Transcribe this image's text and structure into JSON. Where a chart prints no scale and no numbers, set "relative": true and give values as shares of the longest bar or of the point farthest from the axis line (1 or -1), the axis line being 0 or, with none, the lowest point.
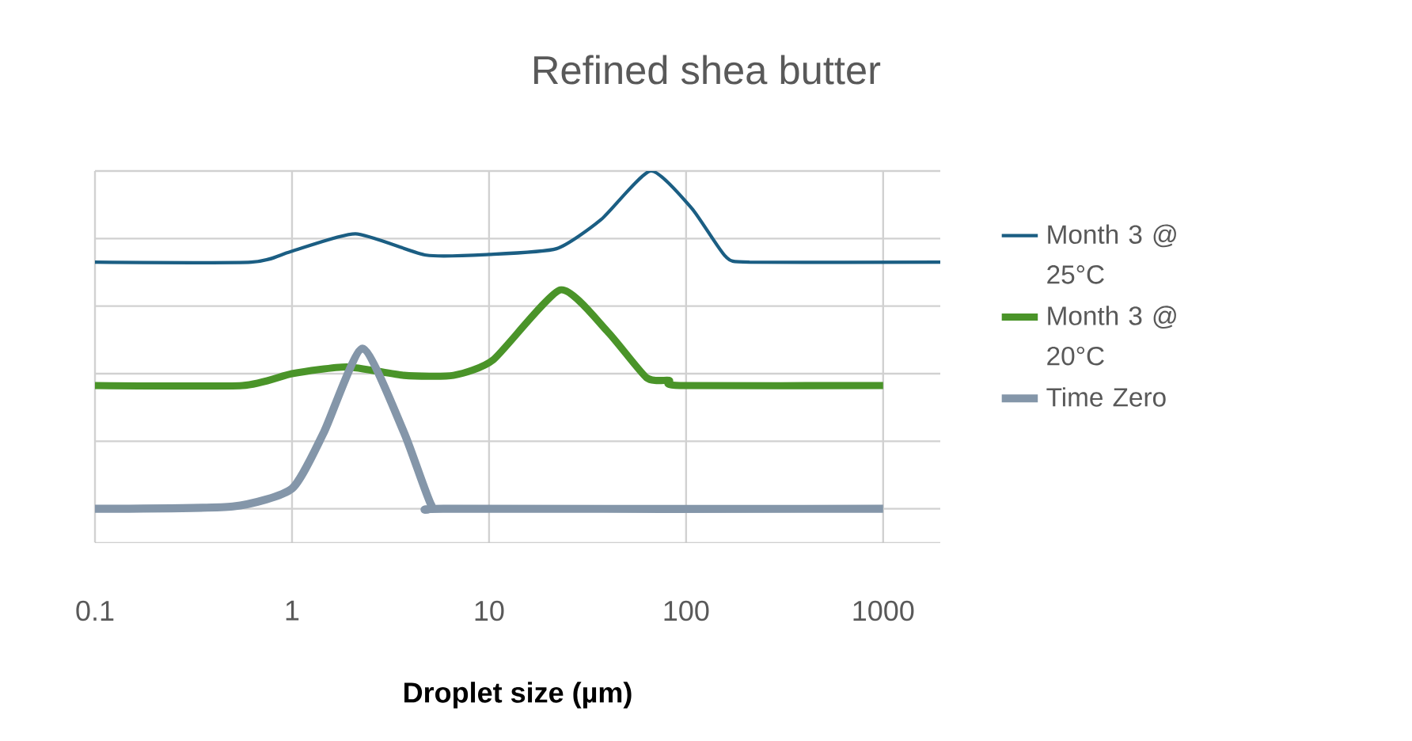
{
  "chart_data": {
    "type": "line",
    "title": "Refined shea butter",
    "xlabel": "Droplet size (µm)",
    "log": "x",
    "relative": true,
    "grid": true,
    "legend": "right",
    "tick_labels": "x",
    "marker": "none",
    "line_style": "solid",
    "xlim": [
      0.1,
      1950
    ],
    "xticks": [
      0.1,
      1,
      10,
      100,
      1000
    ],
    "series": [
      {
        "name": "Month 3 @ 25°C",
        "color": "#1b5e83",
        "x": [
          0.1,
          0.62,
          0.98,
          2.1,
          4.8,
          10,
          22,
          37,
          66,
          107,
          158,
          210,
          1950
        ],
        "values": [
          0.73,
          0.73,
          0.761,
          0.814,
          0.751,
          0.753,
          0.77,
          0.856,
          1.0,
          0.889,
          0.748,
          0.73,
          0.73
        ]
      },
      {
        "name": "Month 3 @ 20°C",
        "color": "#4a9429",
        "x": [
          0.1,
          0.56,
          1.0,
          1.9,
          3.7,
          6.6,
          10.5,
          23,
          40,
          63,
          82,
          93,
          1000
        ],
        "values": [
          0.365,
          0.365,
          0.4,
          0.42,
          0.395,
          0.395,
          0.441,
          0.648,
          0.524,
          0.388,
          0.38,
          0.365,
          0.365
        ]
      },
      {
        "name": "Time Zero",
        "color": "#8496a9",
        "x": [
          0.1,
          0.5,
          1.0,
          1.45,
          2.28,
          3.7,
          5.1,
          6.2,
          1000
        ],
        "values": [
          0,
          0.007,
          0.06,
          0.226,
          0.474,
          0.226,
          0.01,
          0,
          0
        ]
      }
    ]
  }
}
